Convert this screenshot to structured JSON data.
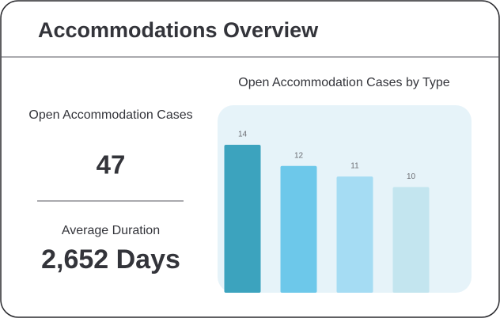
{
  "header": {
    "title": "Accommodations Overview"
  },
  "stats": [
    {
      "label": "Open Accommodation Cases",
      "value": 47
    },
    {
      "label": "Average Duration",
      "value": "2,652 Days"
    }
  ],
  "chart_data": {
    "type": "bar",
    "title": "Open Accommodation Cases by Type",
    "categories": [
      null,
      null,
      null,
      null
    ],
    "values": [
      14,
      12,
      11,
      10
    ],
    "colors": [
      "#3ca3be",
      "#6dc8ea",
      "#a5dcf3",
      "#c3e5ef"
    ]
  }
}
